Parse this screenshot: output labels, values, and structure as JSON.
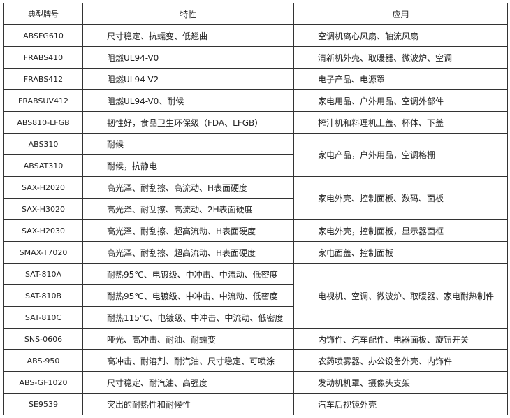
{
  "headers": [
    "典型牌号",
    "特性",
    "应用"
  ],
  "rows": [
    {
      "model": "ABSFG610",
      "property": "尺寸稳定、抗蠕变、低翘曲",
      "application": "空调机离心风扇、轴流风扇"
    },
    {
      "model": "FRABS410",
      "property": "阻燃UL94-V0",
      "application": "清新机外壳、取暖器、微波炉、空调"
    },
    {
      "model": "FRABS412",
      "property": "阻燃UL94-V2",
      "application": "电子产品、电源罩"
    },
    {
      "model": "FRABSUV412",
      "property": "阻燃UL94-V0、耐候",
      "application": "家电用品、户外用品、空调外部件"
    },
    {
      "model": "ABS810-LFGB",
      "property": "韧性好，食品卫生环保级（FDA、LFGB）",
      "application": "榨汁机和料理机上盖、杯体、下盖"
    },
    {
      "model": "ABS310",
      "property": "耐候",
      "application": "家电产品，户外用品，空调格栅"
    },
    {
      "model": "ABSAT310",
      "property": "耐候，抗静电"
    },
    {
      "model": "SAX-H2020",
      "property": "高光泽、耐刮擦、高流动、H表面硬度",
      "application": "家电外壳、控制面板、数码、面板"
    },
    {
      "model": "SAX-H3020",
      "property": "高光泽、耐刮擦、高流动、2H表面硬度"
    },
    {
      "model": "SAX-H2030",
      "property": "高光泽、耐刮擦、超高流动、H表面硬度",
      "application": "家电外壳，控制面板，显示器面框"
    },
    {
      "model": "SMAX-T7020",
      "property": "高光泽、耐刮擦、超高流动、H表面硬度",
      "application": "家电面盖、控制面板"
    },
    {
      "model": "SAT-810A",
      "property": "耐热95℃、电镀级、中冲击、中流动、低密度",
      "application": "电视机、空调、微波炉、取暖器、家电耐热制件"
    },
    {
      "model": "SAT-810B",
      "property": "耐热95℃、电镀级、中冲击、中流动、低密度"
    },
    {
      "model": "SAT-810C",
      "property": "耐热115℃、电镀级、中冲击、中流动、低密度"
    },
    {
      "model": "SNS-0606",
      "property": "哑光、高冲击、耐油、耐蠕变",
      "application": "内饰件、汽车配件、电器面板、旋钮开关"
    },
    {
      "model": "ABS-950",
      "property": "高冲击、耐溶剂、耐汽油、尺寸稳定、可喷涂",
      "application": "农药喷雾器、办公设备外壳、内饰件"
    },
    {
      "model": "ABS-GF1020",
      "property": "尺寸稳定、耐汽油、高强度",
      "application": "发动机机罩、摄像头支架"
    },
    {
      "model": "SE9539",
      "property": "突出的耐热性和耐候性",
      "application": "汽车后视镜外壳"
    }
  ]
}
